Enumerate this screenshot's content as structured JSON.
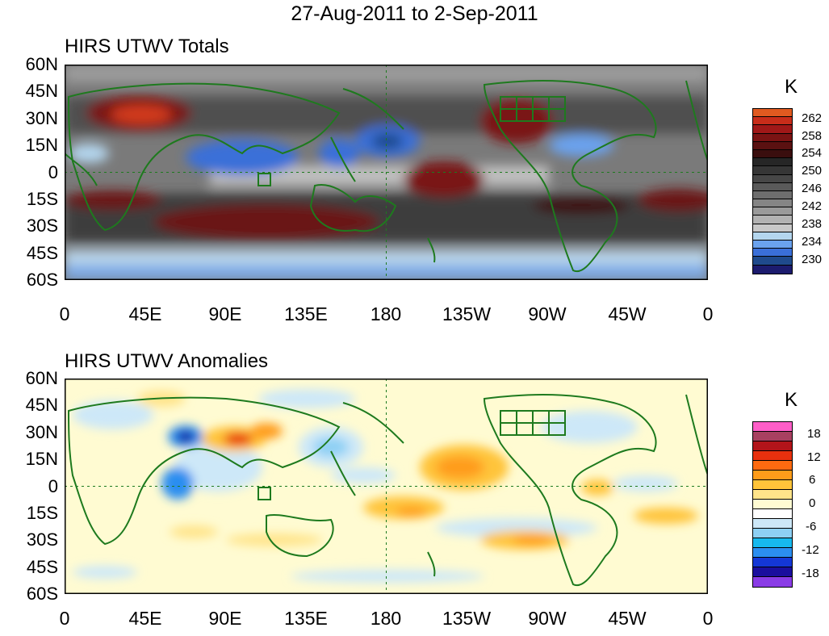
{
  "title": "27-Aug-2011 to 2-Sep-2011",
  "panels": [
    {
      "title": "HIRS UTWV Totals",
      "unit": "K",
      "lat_labels": [
        "60N",
        "45N",
        "30N",
        "15N",
        "0",
        "15S",
        "30S",
        "45S",
        "60S"
      ],
      "lon_labels": [
        "0",
        "45E",
        "90E",
        "135E",
        "180",
        "135W",
        "90W",
        "45W",
        "0"
      ],
      "colorbar": {
        "colors": [
          "#1c1b6e",
          "#1f4a8c",
          "#3a6fd8",
          "#6aa2ee",
          "#b4d6ee",
          "#c8c8c8",
          "#b2b2b2",
          "#9a9a9a",
          "#858585",
          "#6e6e6e",
          "#5a5a5a",
          "#474747",
          "#363636",
          "#262626",
          "#3a0e0e",
          "#5a1111",
          "#7a1313",
          "#a01818",
          "#c82d1a",
          "#e05a20"
        ],
        "labels": [
          "262",
          "258",
          "254",
          "250",
          "246",
          "242",
          "238",
          "234",
          "230"
        ]
      }
    },
    {
      "title": "HIRS UTWV Anomalies",
      "unit": "K",
      "lat_labels": [
        "60N",
        "45N",
        "30N",
        "15N",
        "0",
        "15S",
        "30S",
        "45S",
        "60S"
      ],
      "lon_labels": [
        "0",
        "45E",
        "90E",
        "135E",
        "180",
        "135W",
        "90W",
        "45W",
        "0"
      ],
      "colorbar": {
        "colors": [
          "#8a3ce6",
          "#1a0e9e",
          "#1437d6",
          "#2b8ef0",
          "#17b9ee",
          "#8ed0f4",
          "#cde8f8",
          "#ffffff",
          "#fffbd2",
          "#ffe48a",
          "#ffc43a",
          "#ff9c1a",
          "#ff6a10",
          "#e8300e",
          "#b2141a",
          "#a84060",
          "#ff5ec8"
        ],
        "labels": [
          "18",
          "12",
          "6",
          "0",
          "-6",
          "-12",
          "-18"
        ]
      }
    }
  ],
  "chart_data": [
    {
      "type": "heatmap",
      "title": "HIRS UTWV Totals",
      "subtitle": "27-Aug-2011 to 2-Sep-2011",
      "unit": "K",
      "x_ticks": [
        "0",
        "45E",
        "90E",
        "135E",
        "180",
        "135W",
        "90W",
        "45W",
        "0"
      ],
      "y_ticks": [
        "60N",
        "45N",
        "30N",
        "15N",
        "0",
        "15S",
        "30S",
        "45S",
        "60S"
      ],
      "xlim": [
        0,
        360
      ],
      "ylim": [
        -60,
        60
      ],
      "colorbar_levels": [
        230,
        232,
        234,
        236,
        238,
        240,
        242,
        244,
        246,
        248,
        250,
        252,
        254,
        256,
        258,
        260,
        262
      ],
      "features": [
        {
          "lon": 42,
          "lat": 32,
          "value": 262
        },
        {
          "lon": 150,
          "lat": 20,
          "value": 232
        },
        {
          "lon": 80,
          "lat": 5,
          "value": 232
        },
        {
          "lon": 252,
          "lat": 22,
          "value": 258
        },
        {
          "lon": 210,
          "lat": -5,
          "value": 258
        },
        {
          "lon": 100,
          "lat": -20,
          "value": 258
        },
        {
          "lon": 340,
          "lat": -18,
          "value": 256
        }
      ]
    },
    {
      "type": "heatmap",
      "title": "HIRS UTWV Anomalies",
      "subtitle": "27-Aug-2011 to 2-Sep-2011",
      "unit": "K",
      "x_ticks": [
        "0",
        "45E",
        "90E",
        "135E",
        "180",
        "135W",
        "90W",
        "45W",
        "0"
      ],
      "y_ticks": [
        "60N",
        "45N",
        "30N",
        "15N",
        "0",
        "15S",
        "30S",
        "45S",
        "60S"
      ],
      "xlim": [
        0,
        360
      ],
      "ylim": [
        -60,
        60
      ],
      "colorbar_levels": [
        -21,
        -18,
        -15,
        -12,
        -9,
        -6,
        -3,
        0,
        3,
        6,
        9,
        12,
        15,
        18,
        21
      ],
      "features": [
        {
          "lon": 65,
          "lat": 28,
          "value": -18
        },
        {
          "lon": 100,
          "lat": 28,
          "value": 14
        },
        {
          "lon": 235,
          "lat": 18,
          "value": 10
        },
        {
          "lon": 55,
          "lat": 0,
          "value": -8
        },
        {
          "lon": 155,
          "lat": 22,
          "value": -6
        },
        {
          "lon": 205,
          "lat": -12,
          "value": 8
        },
        {
          "lon": 258,
          "lat": -28,
          "value": 8
        },
        {
          "lon": 110,
          "lat": -25,
          "value": 5
        }
      ]
    }
  ]
}
